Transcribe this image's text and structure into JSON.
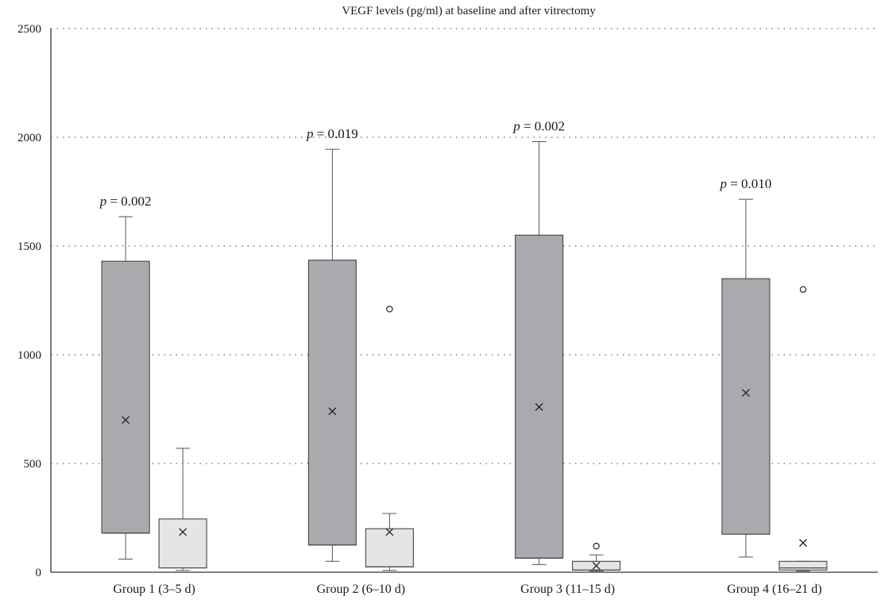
{
  "chart_data": {
    "type": "box",
    "title": "VEGF levels (pg/ml) at baseline and after vitrectomy",
    "xlabel": "",
    "ylabel": "",
    "ylim": [
      0,
      2500
    ],
    "yticks": [
      0,
      500,
      1000,
      1500,
      2000,
      2500
    ],
    "grid": "horizontal dotted",
    "legend": "none",
    "colors": {
      "baseline": "#a9aaad",
      "after": "#e4e5e7",
      "stroke": "#555555",
      "axis": "#333333"
    },
    "categories": [
      "Group 1 (3–5 d)",
      "Group 2 (6–10 d)",
      "Group 3 (11–15 d)",
      "Group 4 (16–21 d)"
    ],
    "groups": [
      {
        "p_label": "p",
        "p_value": "= 0.002",
        "baseline": {
          "min": 60,
          "q1": 180,
          "median": 180,
          "q3": 1430,
          "max": 1635,
          "mean": 700,
          "outliers": []
        },
        "after": {
          "min": 8,
          "q1": 20,
          "median": 20,
          "q3": 245,
          "max": 570,
          "mean": 185,
          "outliers": []
        }
      },
      {
        "p_label": "p",
        "p_value": "= 0.019",
        "baseline": {
          "min": 50,
          "q1": 125,
          "median": 125,
          "q3": 1435,
          "max": 1945,
          "mean": 740,
          "outliers": []
        },
        "after": {
          "min": 8,
          "q1": 25,
          "median": 25,
          "q3": 200,
          "max": 270,
          "mean": 185,
          "outliers": [
            1210
          ]
        }
      },
      {
        "p_label": "p",
        "p_value": "= 0.002",
        "baseline": {
          "min": 35,
          "q1": 65,
          "median": 65,
          "q3": 1550,
          "max": 1980,
          "mean": 760,
          "outliers": []
        },
        "after": {
          "min": 5,
          "q1": 10,
          "median": 10,
          "q3": 50,
          "max": 80,
          "mean": 30,
          "outliers": [
            120
          ]
        }
      },
      {
        "p_label": "p",
        "p_value": "= 0.010",
        "baseline": {
          "min": 70,
          "q1": 175,
          "median": 175,
          "q3": 1350,
          "max": 1715,
          "mean": 825,
          "outliers": []
        },
        "after": {
          "min": 5,
          "q1": 10,
          "median": 20,
          "q3": 50,
          "max": 50,
          "mean": 135,
          "outliers": [
            1300
          ]
        }
      }
    ]
  }
}
